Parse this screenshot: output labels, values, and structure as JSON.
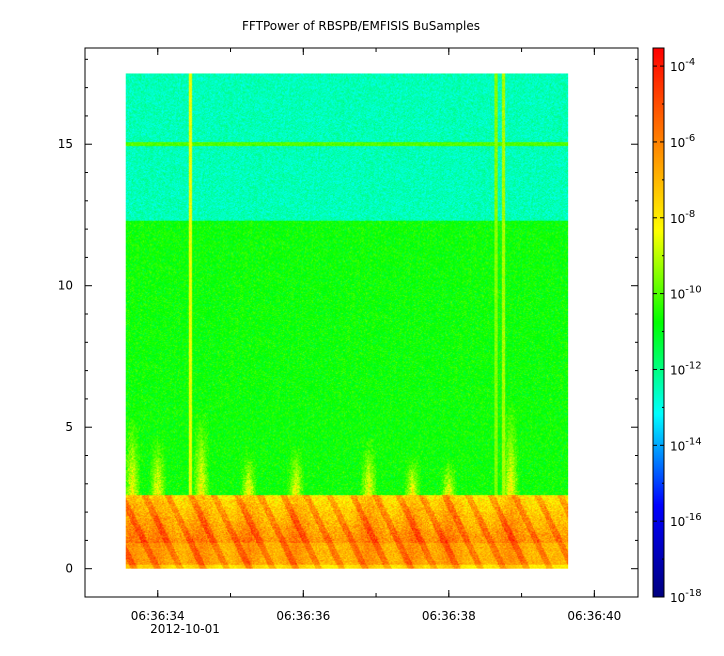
{
  "chart_data": {
    "type": "heatmap",
    "title": "FFTPower of RBSPB/EMFISIS  BuSamples",
    "xlabel": "",
    "ylabel": "",
    "x_axis": {
      "type": "time",
      "range": [
        "06:36:33.0",
        "06:36:40.6"
      ],
      "ticks": [
        "06:36:34",
        "06:36:36",
        "06:36:38",
        "06:36:40"
      ],
      "date_label": "2012-10-01"
    },
    "y_axis": {
      "range": [
        -1,
        18.4
      ],
      "ticks": [
        0,
        5,
        10,
        15
      ]
    },
    "data_extent": {
      "time_range": [
        "06:36:33.56",
        "06:36:39.64"
      ],
      "frequency_range": [
        0,
        17.5
      ]
    },
    "colorbar": {
      "scale": "log",
      "range": [
        1e-18,
        0.0003
      ],
      "ticks": [
        {
          "value": 0.0001,
          "base": "10",
          "exp": "-4"
        },
        {
          "value": 1e-06,
          "base": "10",
          "exp": "-6"
        },
        {
          "value": 1e-08,
          "base": "10",
          "exp": "-8"
        },
        {
          "value": 1e-10,
          "base": "10",
          "exp": "-10"
        },
        {
          "value": 1e-12,
          "base": "10",
          "exp": "-12"
        },
        {
          "value": 1e-14,
          "base": "10",
          "exp": "-14"
        },
        {
          "value": 1e-16,
          "base": "10",
          "exp": "-16"
        },
        {
          "value": 1e-18,
          "base": "10",
          "exp": "-18"
        }
      ],
      "colormap": [
        "#00007f",
        "#0000ff",
        "#00ffff",
        "#00ff00",
        "#ffff00",
        "#ff7f00",
        "#ff0000"
      ]
    },
    "features": {
      "high_freq_band": {
        "frequency_range": [
          12.3,
          17.5
        ],
        "log_power": -12.5
      },
      "mid_band": {
        "frequency_range": [
          2.6,
          12.3
        ],
        "log_power": -10.7
      },
      "horizontal_line": {
        "frequency": 15.0,
        "log_power": -10.0
      },
      "vertical_lines": [
        {
          "time": "06:36:34.45",
          "log_power": -8.5
        },
        {
          "time": "06:36:38.65",
          "log_power": -9.5
        },
        {
          "time": "06:36:38.75",
          "log_power": -9.2
        }
      ],
      "low_freq_intense_band": {
        "frequency_range": [
          0,
          2.6
        ],
        "log_power": -5.5
      },
      "bursts": [
        {
          "time": "06:36:33.65",
          "frequency_top": 5.5
        },
        {
          "time": "06:36:34.00",
          "frequency_top": 4.8
        },
        {
          "time": "06:36:34.60",
          "frequency_top": 5.7
        },
        {
          "time": "06:36:35.25",
          "frequency_top": 4.2
        },
        {
          "time": "06:36:35.90",
          "frequency_top": 4.4
        },
        {
          "time": "06:36:36.90",
          "frequency_top": 4.7
        },
        {
          "time": "06:36:37.50",
          "frequency_top": 4.1
        },
        {
          "time": "06:36:38.00",
          "frequency_top": 3.9
        },
        {
          "time": "06:36:38.85",
          "frequency_top": 6.0
        }
      ]
    }
  }
}
